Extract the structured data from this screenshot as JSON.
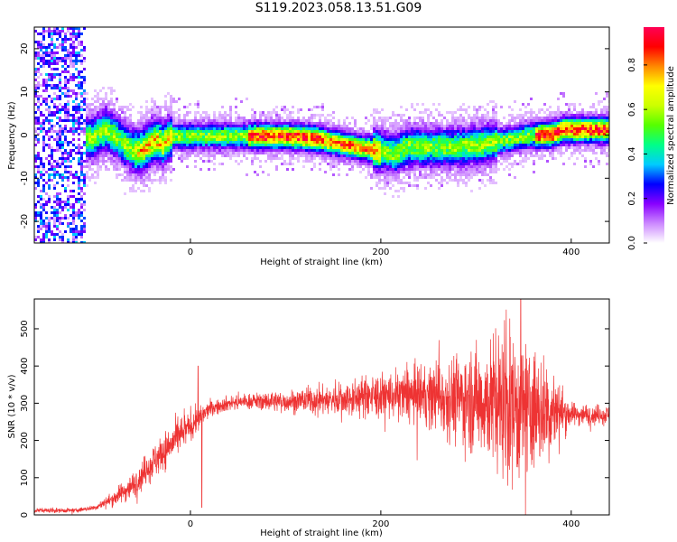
{
  "title": "S119.2023.058.13.51.G09",
  "chart_data": [
    {
      "type": "heatmap",
      "xlabel": "Height of straight line (km)",
      "ylabel": "Frequency (Hz)",
      "xlim": [
        -164,
        440
      ],
      "ylim": [
        -25,
        25
      ],
      "xticks": [
        0,
        200,
        400
      ],
      "yticks": [
        -20,
        -10,
        0,
        10,
        20
      ],
      "colorbar": {
        "label": "Normalized spectral amplitude",
        "range": [
          0,
          0.97
        ],
        "ticks": [
          "0.0",
          "0.2",
          "0.4",
          "0.6",
          "0.8"
        ],
        "tick_values": [
          0.0,
          0.2,
          0.4,
          0.6,
          0.8
        ],
        "colors": [
          "#ffffff",
          "#cc88ff",
          "#8800ff",
          "#0000ff",
          "#00ccff",
          "#00ff88",
          "#55ff00",
          "#ccff00",
          "#ffff00",
          "#ff8800",
          "#ff0000",
          "#ff0055"
        ]
      },
      "ridge": {
        "x": [
          -120,
          -105,
          -90,
          -80,
          -70,
          -60,
          -50,
          -45,
          -40,
          -35,
          -30,
          -25,
          -20,
          0,
          50,
          100,
          130,
          150,
          175,
          200,
          215,
          225,
          250,
          275,
          300,
          330,
          350,
          380,
          390,
          400,
          440
        ],
        "y": [
          0,
          -0.5,
          1.5,
          0,
          -2,
          -3.5,
          -3,
          -2,
          -1,
          -1,
          -2,
          -0.5,
          0,
          0,
          0,
          0,
          -0.5,
          -1.5,
          -2.5,
          -3.5,
          -4,
          -2.5,
          -2.5,
          -2.5,
          -2,
          -1,
          0,
          0.5,
          1.5,
          1.5,
          1.5
        ]
      }
    },
    {
      "type": "line",
      "xlabel": "Height of straight line (km)",
      "ylabel": "SNR (10 * v/v)",
      "xlim": [
        -164,
        440
      ],
      "ylim": [
        0,
        580
      ],
      "xticks": [
        0,
        200,
        400
      ],
      "yticks": [
        0,
        100,
        200,
        300,
        400,
        500
      ],
      "color": "#ee3333",
      "envelope": {
        "x": [
          -164,
          -120,
          -100,
          -80,
          -60,
          -40,
          -20,
          0,
          10,
          20,
          40,
          60,
          100,
          150,
          200,
          250,
          300,
          330,
          350,
          380,
          400,
          420,
          440
        ],
        "y": [
          12,
          12,
          20,
          45,
          80,
          140,
          190,
          240,
          260,
          285,
          300,
          305,
          305,
          310,
          320,
          320,
          310,
          300,
          280,
          280,
          270,
          270,
          268
        ]
      },
      "noise": {
        "x": [
          -164,
          -100,
          -80,
          -60,
          -40,
          -20,
          0,
          20,
          60,
          150,
          250,
          300,
          330,
          350,
          380,
          400,
          440
        ],
        "y": [
          6,
          6,
          20,
          35,
          45,
          50,
          40,
          20,
          20,
          40,
          80,
          140,
          190,
          200,
          110,
          30,
          25
        ]
      },
      "peaks": [
        {
          "x": 8,
          "y": 400
        },
        {
          "x": 12,
          "y": 20
        },
        {
          "x": 347,
          "y": 578
        }
      ]
    }
  ]
}
